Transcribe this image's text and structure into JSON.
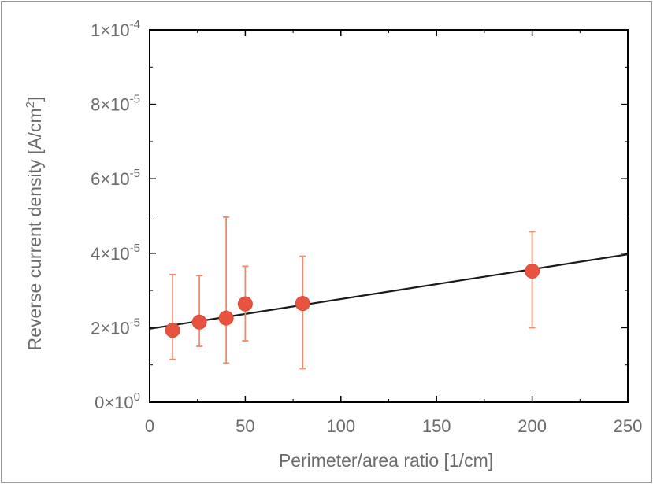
{
  "chart_data": {
    "type": "scatter",
    "title": "",
    "xlabel": "Perimeter/area ratio [1/cm]",
    "ylabel_main": "Reverse current density [A/cm",
    "ylabel_sup": "2",
    "ylabel_close": "]",
    "xlim": [
      0,
      250
    ],
    "ylim": [
      0,
      0.0001
    ],
    "x_ticks": [
      {
        "value": 0,
        "label": "0"
      },
      {
        "value": 50,
        "label": "50"
      },
      {
        "value": 100,
        "label": "100"
      },
      {
        "value": 150,
        "label": "150"
      },
      {
        "value": 200,
        "label": "200"
      },
      {
        "value": 250,
        "label": "250"
      }
    ],
    "y_ticks": [
      {
        "value": 0,
        "mantissa": "0×10",
        "exp": "0"
      },
      {
        "value": 2e-05,
        "mantissa": "2×10",
        "exp": "-5"
      },
      {
        "value": 4e-05,
        "mantissa": "4×10",
        "exp": "-5"
      },
      {
        "value": 6e-05,
        "mantissa": "6×10",
        "exp": "-5"
      },
      {
        "value": 8e-05,
        "mantissa": "8×10",
        "exp": "-5"
      },
      {
        "value": 0.0001,
        "mantissa": "1×10",
        "exp": "-4"
      }
    ],
    "grid": false,
    "series": [
      {
        "x": [
          12,
          26,
          40,
          50,
          80,
          200
        ],
        "y": [
          1.93e-05,
          2.15e-05,
          2.26e-05,
          2.64e-05,
          2.65e-05,
          3.52e-05
        ],
        "err_low": [
          1.15e-05,
          1.5e-05,
          1.05e-05,
          1.65e-05,
          9e-06,
          2e-05
        ],
        "err_high": [
          3.43e-05,
          3.4e-05,
          4.97e-05,
          3.65e-05,
          3.92e-05,
          4.58e-05
        ],
        "color": "#e8533f",
        "errorbar_color": "#f08a6a"
      }
    ],
    "fit_line": {
      "x": [
        0,
        250
      ],
      "y": [
        1.97e-05,
        3.97e-05
      ],
      "color": "#1a1a1a"
    }
  },
  "colors": {
    "frame": "#000000",
    "text": "#6b6b6b",
    "page_border": "#9a9a9a"
  }
}
